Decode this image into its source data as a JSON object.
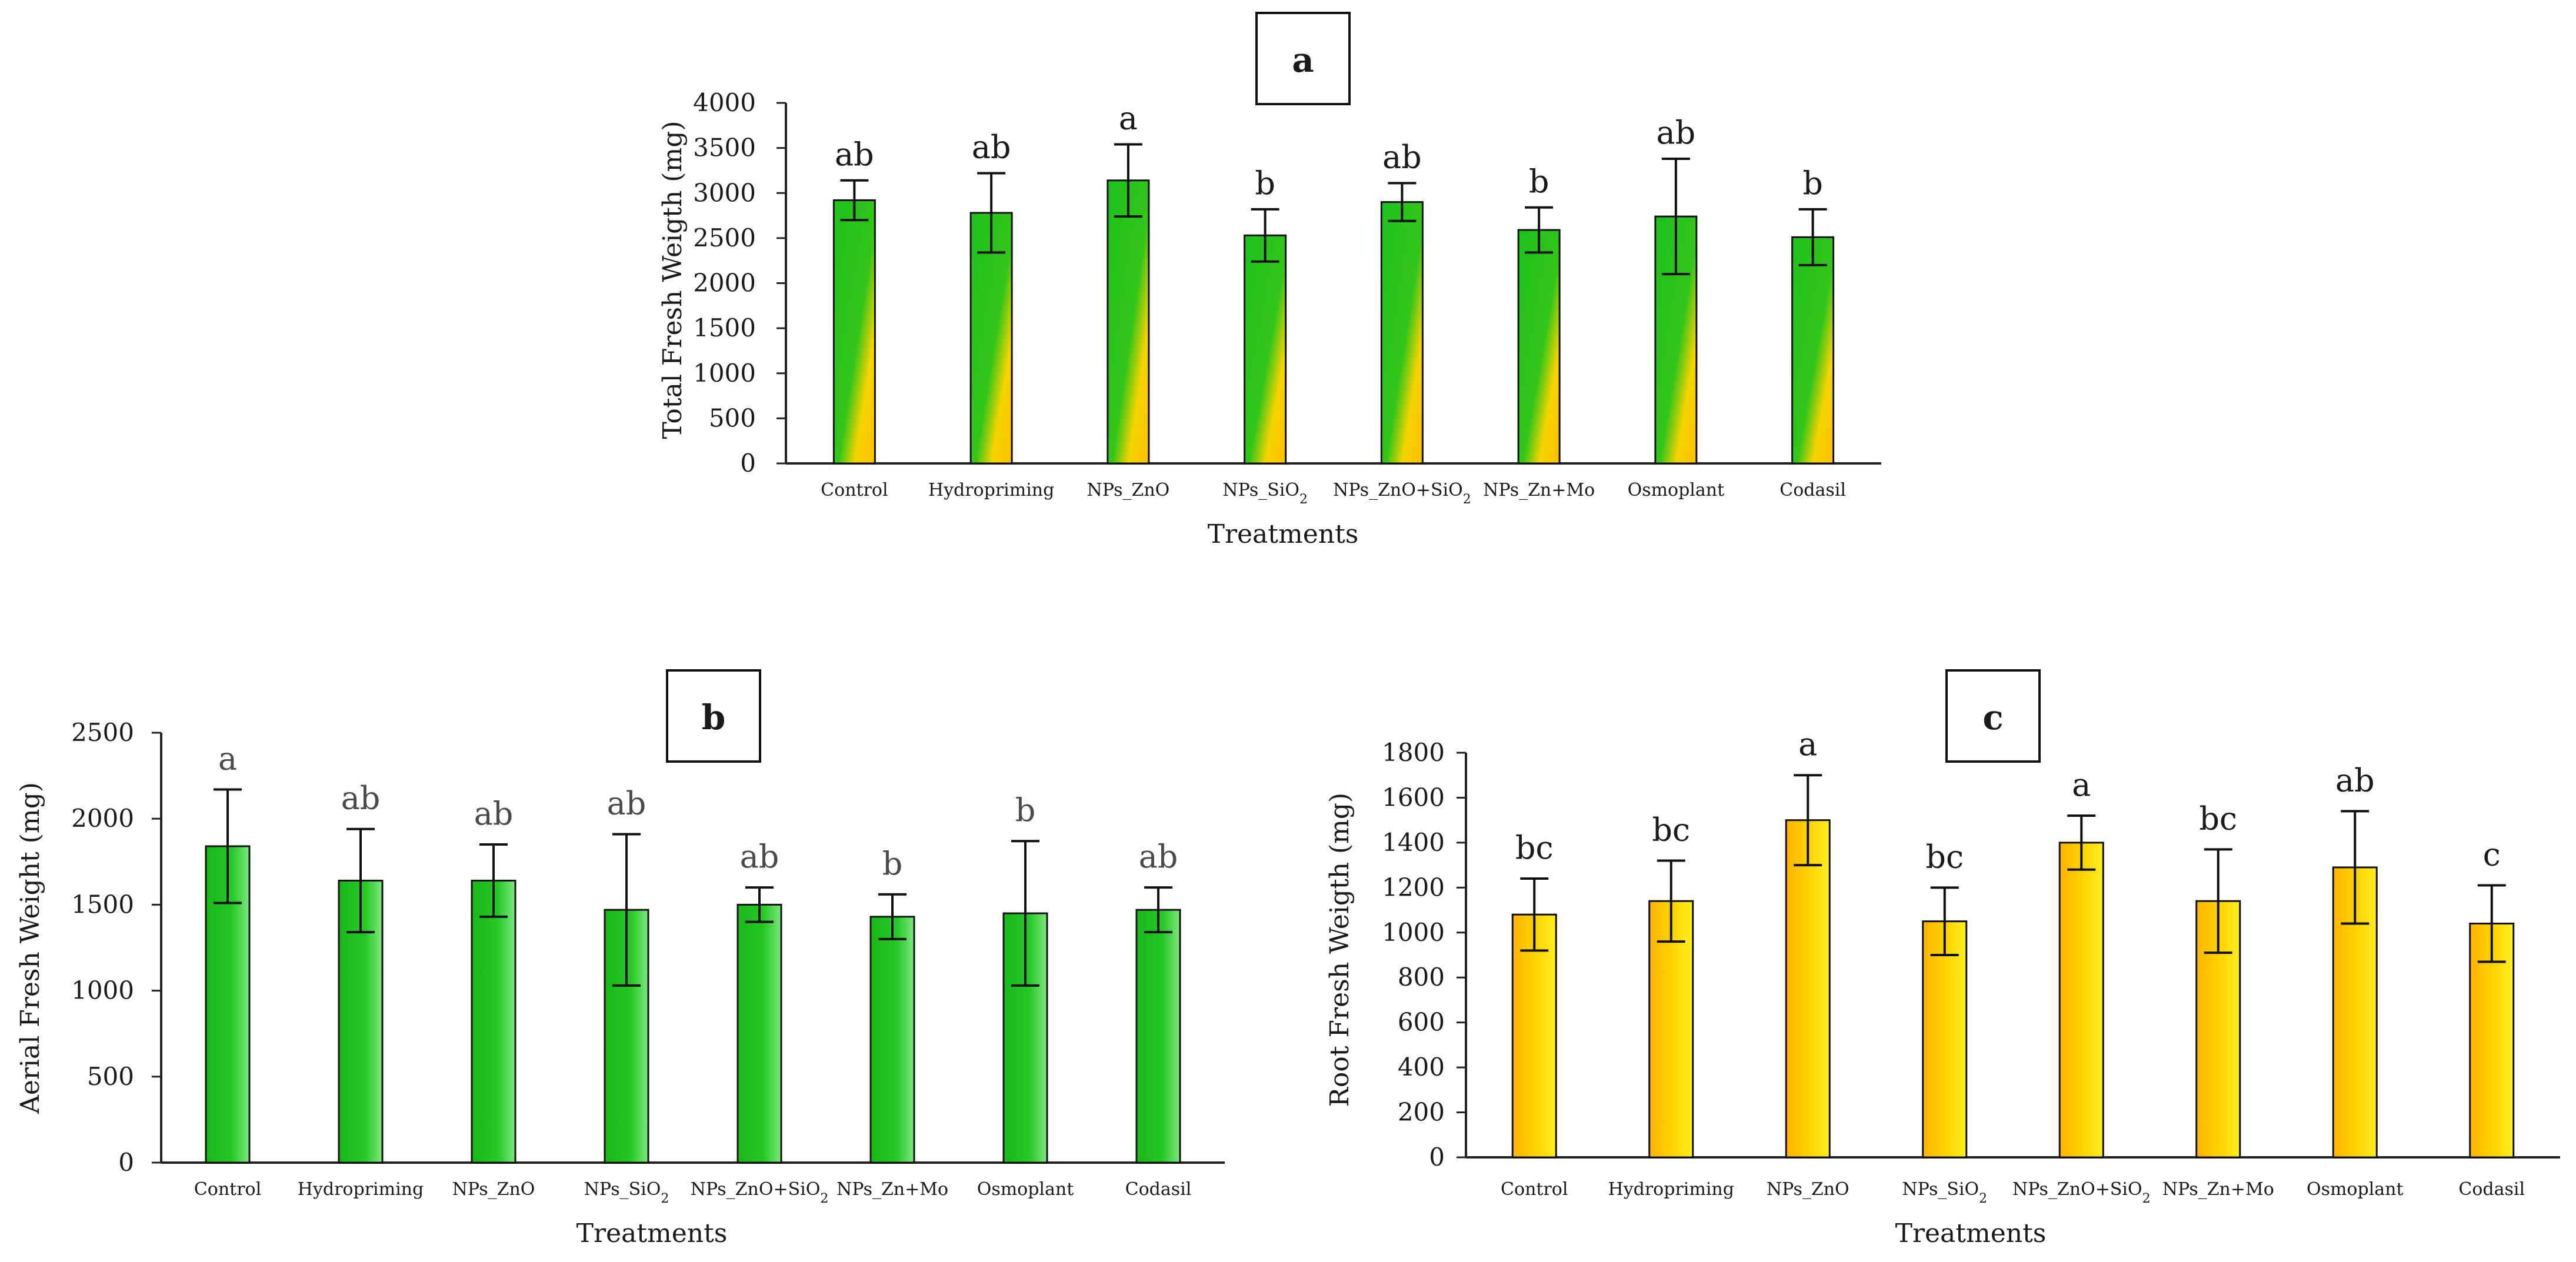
{
  "chart_data": [
    {
      "type": "bar",
      "panel": "a",
      "xlabel": "Treatments",
      "ylabel": "Total Fresh Weigth (mg)",
      "ylim": [
        0,
        4000
      ],
      "yticks": [
        0,
        500,
        1000,
        1500,
        2000,
        2500,
        3000,
        3500,
        4000
      ],
      "grid": false,
      "bar_gradient": "green-to-yellow",
      "categories": [
        "Control",
        "Hydropriming",
        "NPs_ZnO",
        "NPs_SiO2",
        "NPs_ZnO+SiO2",
        "NPs_Zn+Mo",
        "Osmoplant",
        "Codasil"
      ],
      "category_labels": [
        {
          "main": "Control",
          "sub": ""
        },
        {
          "main": "Hydropriming",
          "sub": ""
        },
        {
          "main": "NPs_ZnO",
          "sub": ""
        },
        {
          "main": "NPs_SiO",
          "sub": "2"
        },
        {
          "main": "NPs_ZnO+SiO",
          "sub": "2"
        },
        {
          "main": "NPs_Zn+Mo",
          "sub": ""
        },
        {
          "main": "Osmoplant",
          "sub": ""
        },
        {
          "main": "Codasil",
          "sub": ""
        }
      ],
      "values": [
        2920,
        2780,
        3140,
        2530,
        2900,
        2590,
        2740,
        2510
      ],
      "errors": [
        220,
        440,
        400,
        290,
        210,
        250,
        640,
        310
      ],
      "significance": [
        "ab",
        "ab",
        "a",
        "b",
        "ab",
        "b",
        "ab",
        "b"
      ]
    },
    {
      "type": "bar",
      "panel": "b",
      "xlabel": "Treatments",
      "ylabel": "Aerial Fresh Weight (mg)",
      "ylim": [
        0,
        2500
      ],
      "yticks": [
        0,
        500,
        1000,
        1500,
        2000,
        2500
      ],
      "grid": false,
      "bar_gradient": "green",
      "categories": [
        "Control",
        "Hydropriming",
        "NPs_ZnO",
        "NPs_SiO2",
        "NPs_ZnO+SiO2",
        "NPs_Zn+Mo",
        "Osmoplant",
        "Codasil"
      ],
      "category_labels": [
        {
          "main": "Control",
          "sub": ""
        },
        {
          "main": "Hydropriming",
          "sub": ""
        },
        {
          "main": "NPs_ZnO",
          "sub": ""
        },
        {
          "main": "NPs_SiO",
          "sub": "2"
        },
        {
          "main": "NPs_ZnO+SiO",
          "sub": "2"
        },
        {
          "main": "NPs_Zn+Mo",
          "sub": ""
        },
        {
          "main": "Osmoplant",
          "sub": ""
        },
        {
          "main": "Codasil",
          "sub": ""
        }
      ],
      "values": [
        1840,
        1640,
        1640,
        1470,
        1500,
        1430,
        1450,
        1470
      ],
      "errors": [
        330,
        300,
        210,
        440,
        100,
        130,
        420,
        130
      ],
      "significance": [
        "a",
        "ab",
        "ab",
        "ab",
        "ab",
        "b",
        "b",
        "ab"
      ]
    },
    {
      "type": "bar",
      "panel": "c",
      "xlabel": "Treatments",
      "ylabel": "Root Fresh Weigth (mg)",
      "ylim": [
        0,
        1800
      ],
      "yticks": [
        0,
        200,
        400,
        600,
        800,
        1000,
        1200,
        1400,
        1600,
        1800
      ],
      "grid": false,
      "bar_gradient": "yellow",
      "categories": [
        "Control",
        "Hydropriming",
        "NPs_ZnO",
        "NPs_SiO2",
        "NPs_ZnO+SiO2",
        "NPs_Zn+Mo",
        "Osmoplant",
        "Codasil"
      ],
      "category_labels": [
        {
          "main": "Control",
          "sub": ""
        },
        {
          "main": "Hydropriming",
          "sub": ""
        },
        {
          "main": "NPs_ZnO",
          "sub": ""
        },
        {
          "main": "NPs_SiO",
          "sub": "2"
        },
        {
          "main": "NPs_ZnO+SiO",
          "sub": "2"
        },
        {
          "main": "NPs_Zn+Mo",
          "sub": ""
        },
        {
          "main": "Osmoplant",
          "sub": ""
        },
        {
          "main": "Codasil",
          "sub": ""
        }
      ],
      "values": [
        1080,
        1140,
        1500,
        1050,
        1400,
        1140,
        1290,
        1040
      ],
      "errors": [
        160,
        180,
        200,
        150,
        120,
        230,
        250,
        170
      ],
      "significance": [
        "bc",
        "bc",
        "a",
        "bc",
        "a",
        "bc",
        "ab",
        "c"
      ]
    }
  ]
}
